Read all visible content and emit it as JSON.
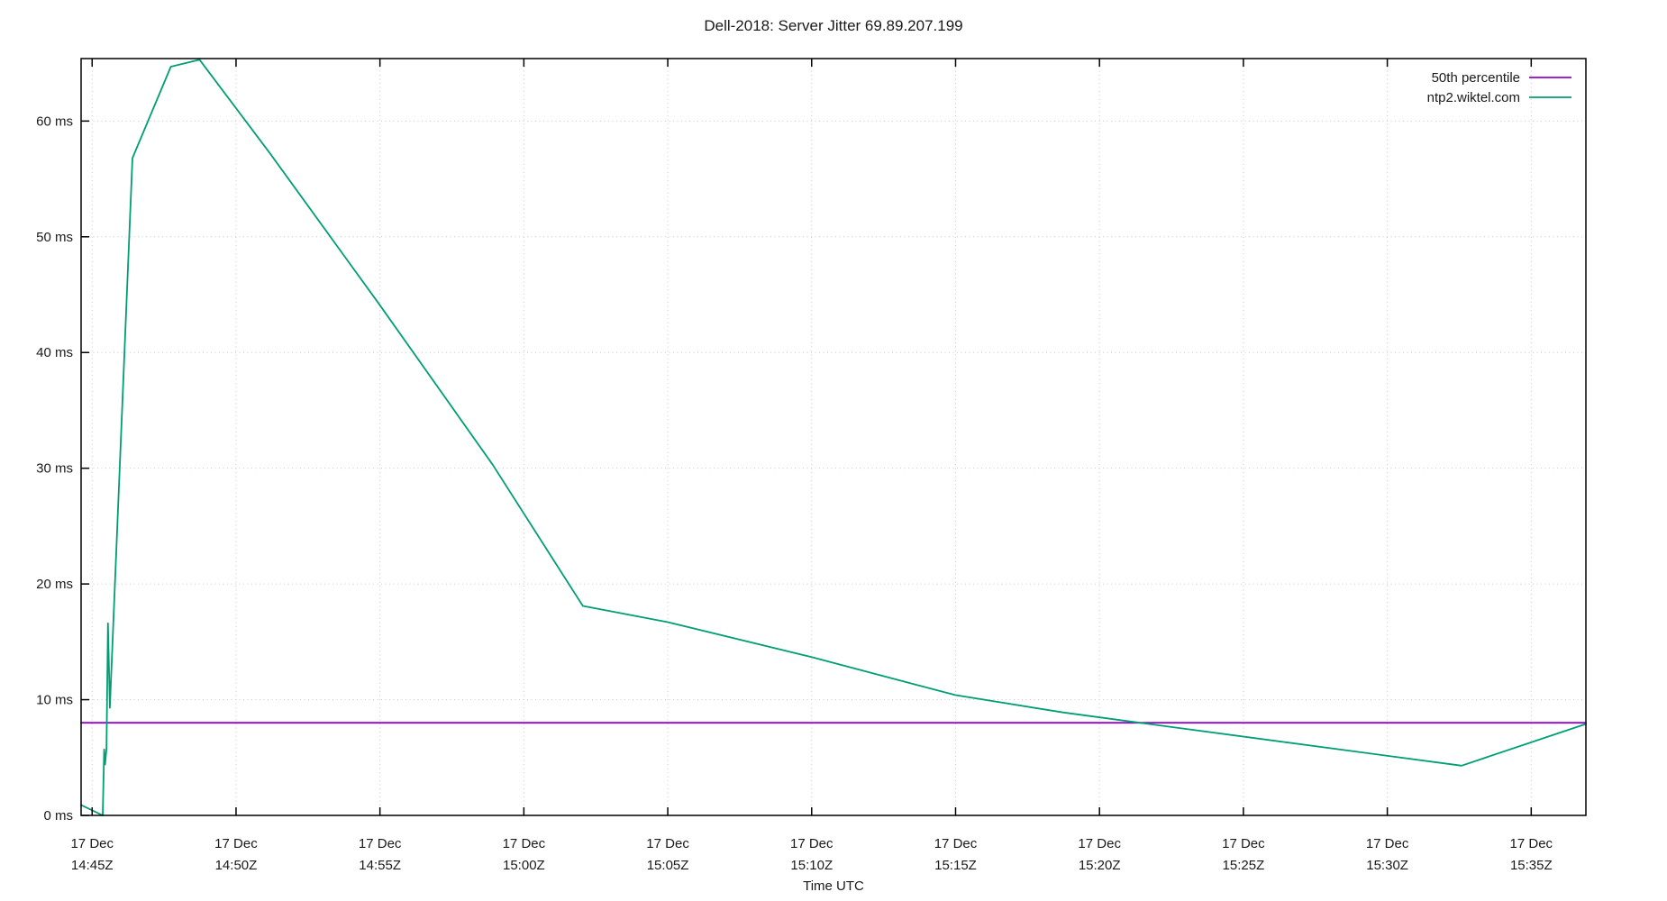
{
  "chart_data": {
    "type": "line",
    "title": "Dell-2018: Server Jitter 69.89.207.199",
    "xlabel": "Time UTC",
    "ylabel": "",
    "y_unit": "ms",
    "xlim": [
      "14:44:37",
      "15:36:54"
    ],
    "ylim": [
      0,
      65.4
    ],
    "grid": "dotted-major-only",
    "legend_position": "top-right-inside",
    "border_color": "#000000",
    "grid_color": "#c8c8c8",
    "text_color": "#1a1a1a",
    "y_ticks": [
      {
        "value": 0,
        "label": "0 ms"
      },
      {
        "value": 10,
        "label": "10 ms"
      },
      {
        "value": 20,
        "label": "20 ms"
      },
      {
        "value": 30,
        "label": "30 ms"
      },
      {
        "value": 40,
        "label": "40 ms"
      },
      {
        "value": 50,
        "label": "50 ms"
      },
      {
        "value": 60,
        "label": "60 ms"
      }
    ],
    "x_ticks": [
      {
        "time": "14:45:00",
        "label_line1": "17 Dec",
        "label_line2": "14:45Z"
      },
      {
        "time": "14:50:00",
        "label_line1": "17 Dec",
        "label_line2": "14:50Z"
      },
      {
        "time": "14:55:00",
        "label_line1": "17 Dec",
        "label_line2": "14:55Z"
      },
      {
        "time": "15:00:00",
        "label_line1": "17 Dec",
        "label_line2": "15:00Z"
      },
      {
        "time": "15:05:00",
        "label_line1": "17 Dec",
        "label_line2": "15:05Z"
      },
      {
        "time": "15:10:00",
        "label_line1": "17 Dec",
        "label_line2": "15:10Z"
      },
      {
        "time": "15:15:00",
        "label_line1": "17 Dec",
        "label_line2": "15:15Z"
      },
      {
        "time": "15:20:00",
        "label_line1": "17 Dec",
        "label_line2": "15:20Z"
      },
      {
        "time": "15:25:00",
        "label_line1": "17 Dec",
        "label_line2": "15:25Z"
      },
      {
        "time": "15:30:00",
        "label_line1": "17 Dec",
        "label_line2": "15:30Z"
      },
      {
        "time": "15:35:00",
        "label_line1": "17 Dec",
        "label_line2": "15:35Z"
      }
    ],
    "series": [
      {
        "name": "50th percentile",
        "color": "#9400d3",
        "points": [
          {
            "time": "14:44:37",
            "ms": 8.0
          },
          {
            "time": "15:36:54",
            "ms": 8.0
          }
        ]
      },
      {
        "name": "ntp2.wiktel.com",
        "color": "#009e73",
        "points": [
          {
            "time": "14:44:37",
            "ms": 0.9
          },
          {
            "time": "14:45:22",
            "ms": 0.0
          },
          {
            "time": "14:45:25",
            "ms": 5.7
          },
          {
            "time": "14:45:27",
            "ms": 4.4
          },
          {
            "time": "14:45:30",
            "ms": 5.8
          },
          {
            "time": "14:45:33",
            "ms": 16.6
          },
          {
            "time": "14:45:37",
            "ms": 9.3
          },
          {
            "time": "14:46:24",
            "ms": 56.8
          },
          {
            "time": "14:47:44",
            "ms": 64.7
          },
          {
            "time": "14:48:44",
            "ms": 65.3
          },
          {
            "time": "14:51:11",
            "ms": 57.2
          },
          {
            "time": "14:54:58",
            "ms": 44.2
          },
          {
            "time": "14:58:55",
            "ms": 30.3
          },
          {
            "time": "15:02:03",
            "ms": 18.1
          },
          {
            "time": "15:05:00",
            "ms": 16.7
          },
          {
            "time": "15:09:58",
            "ms": 13.7
          },
          {
            "time": "15:14:59",
            "ms": 10.4
          },
          {
            "time": "15:18:44",
            "ms": 8.9
          },
          {
            "time": "15:21:24",
            "ms": 8.0
          },
          {
            "time": "15:32:35",
            "ms": 4.3
          },
          {
            "time": "15:36:54",
            "ms": 7.9
          }
        ]
      }
    ]
  }
}
